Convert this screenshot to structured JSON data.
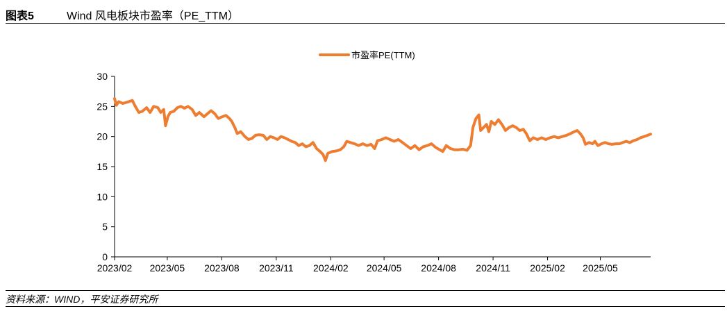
{
  "header": {
    "figure_number": "图表5",
    "figure_title": "Wind 风电板块市盈率（PE_TTM）"
  },
  "footer": {
    "source": "资料来源：WIND，平安证券研究所"
  },
  "colors": {
    "series": "#ED7D31",
    "axis": "#000000"
  },
  "chart_data": {
    "type": "line",
    "title": "",
    "xlabel": "",
    "ylabel": "",
    "ylim": [
      0,
      30
    ],
    "yticks": [
      0,
      5,
      10,
      15,
      20,
      25,
      30
    ],
    "xlim": [
      "2023-02-01",
      "2025-07-25"
    ],
    "xtick_labels": [
      "2023/02",
      "2023/05",
      "2023/08",
      "2023/11",
      "2024/02",
      "2024/05",
      "2024/08",
      "2024/11",
      "2025/02",
      "2025/05"
    ],
    "xtick_dates": [
      "2023-02-01",
      "2023-05-01",
      "2023-08-01",
      "2023-11-01",
      "2024-02-01",
      "2024-05-01",
      "2024-08-01",
      "2024-11-01",
      "2025-02-01",
      "2025-05-01"
    ],
    "grid": false,
    "legend_position": "top-center",
    "series": [
      {
        "name": "市盈率PE(TTM)",
        "points": [
          [
            "2023-02-01",
            26.3
          ],
          [
            "2023-02-04",
            25.2
          ],
          [
            "2023-02-08",
            25.8
          ],
          [
            "2023-02-15",
            25.5
          ],
          [
            "2023-02-25",
            25.8
          ],
          [
            "2023-03-03",
            26.0
          ],
          [
            "2023-03-08",
            25.0
          ],
          [
            "2023-03-14",
            24.0
          ],
          [
            "2023-03-20",
            24.2
          ],
          [
            "2023-03-27",
            24.8
          ],
          [
            "2023-04-02",
            24.0
          ],
          [
            "2023-04-08",
            25.0
          ],
          [
            "2023-04-15",
            24.8
          ],
          [
            "2023-04-20",
            24.0
          ],
          [
            "2023-04-25",
            24.5
          ],
          [
            "2023-04-28",
            21.8
          ],
          [
            "2023-05-02",
            23.3
          ],
          [
            "2023-05-06",
            24.0
          ],
          [
            "2023-05-12",
            24.2
          ],
          [
            "2023-05-18",
            24.8
          ],
          [
            "2023-05-24",
            25.0
          ],
          [
            "2023-05-30",
            24.7
          ],
          [
            "2023-06-05",
            25.0
          ],
          [
            "2023-06-12",
            24.5
          ],
          [
            "2023-06-18",
            23.5
          ],
          [
            "2023-06-24",
            24.0
          ],
          [
            "2023-07-02",
            23.3
          ],
          [
            "2023-07-08",
            23.8
          ],
          [
            "2023-07-14",
            24.3
          ],
          [
            "2023-07-20",
            23.8
          ],
          [
            "2023-07-26",
            23.0
          ],
          [
            "2023-08-02",
            23.3
          ],
          [
            "2023-08-08",
            23.5
          ],
          [
            "2023-08-14",
            23.0
          ],
          [
            "2023-08-18",
            22.5
          ],
          [
            "2023-08-23",
            21.5
          ],
          [
            "2023-08-27",
            20.5
          ],
          [
            "2023-09-02",
            20.8
          ],
          [
            "2023-09-09",
            20.0
          ],
          [
            "2023-09-15",
            19.5
          ],
          [
            "2023-09-21",
            19.7
          ],
          [
            "2023-09-27",
            20.2
          ],
          [
            "2023-10-03",
            20.3
          ],
          [
            "2023-10-10",
            20.2
          ],
          [
            "2023-10-16",
            19.5
          ],
          [
            "2023-10-22",
            20.0
          ],
          [
            "2023-10-28",
            19.8
          ],
          [
            "2023-11-03",
            19.5
          ],
          [
            "2023-11-09",
            20.0
          ],
          [
            "2023-11-15",
            19.8
          ],
          [
            "2023-11-21",
            19.5
          ],
          [
            "2023-11-27",
            19.2
          ],
          [
            "2023-12-03",
            19.0
          ],
          [
            "2023-12-09",
            18.5
          ],
          [
            "2023-12-15",
            18.8
          ],
          [
            "2023-12-21",
            18.3
          ],
          [
            "2023-12-27",
            18.5
          ],
          [
            "2024-01-02",
            19.0
          ],
          [
            "2024-01-08",
            18.0
          ],
          [
            "2024-01-14",
            17.5
          ],
          [
            "2024-01-19",
            17.0
          ],
          [
            "2024-01-23",
            16.0
          ],
          [
            "2024-01-27",
            17.2
          ],
          [
            "2024-02-03",
            17.5
          ],
          [
            "2024-02-10",
            17.6
          ],
          [
            "2024-02-17",
            17.8
          ],
          [
            "2024-02-23",
            18.3
          ],
          [
            "2024-02-28",
            19.2
          ],
          [
            "2024-03-05",
            19.0
          ],
          [
            "2024-03-12",
            18.8
          ],
          [
            "2024-03-19",
            18.5
          ],
          [
            "2024-03-26",
            18.8
          ],
          [
            "2024-04-02",
            18.5
          ],
          [
            "2024-04-09",
            18.7
          ],
          [
            "2024-04-15",
            18.0
          ],
          [
            "2024-04-20",
            19.3
          ],
          [
            "2024-04-27",
            19.5
          ],
          [
            "2024-05-04",
            19.8
          ],
          [
            "2024-05-11",
            19.5
          ],
          [
            "2024-05-18",
            19.2
          ],
          [
            "2024-05-25",
            19.5
          ],
          [
            "2024-06-01",
            19.0
          ],
          [
            "2024-06-08",
            18.5
          ],
          [
            "2024-06-15",
            18.0
          ],
          [
            "2024-06-22",
            18.5
          ],
          [
            "2024-06-29",
            17.8
          ],
          [
            "2024-07-06",
            18.3
          ],
          [
            "2024-07-13",
            18.5
          ],
          [
            "2024-07-20",
            18.8
          ],
          [
            "2024-07-27",
            18.2
          ],
          [
            "2024-08-03",
            17.8
          ],
          [
            "2024-08-08",
            17.5
          ],
          [
            "2024-08-14",
            18.5
          ],
          [
            "2024-08-21",
            18.0
          ],
          [
            "2024-08-28",
            17.8
          ],
          [
            "2024-09-04",
            17.8
          ],
          [
            "2024-09-11",
            17.9
          ],
          [
            "2024-09-18",
            17.7
          ],
          [
            "2024-09-24",
            18.5
          ],
          [
            "2024-09-28",
            21.5
          ],
          [
            "2024-10-03",
            23.0
          ],
          [
            "2024-10-08",
            23.6
          ],
          [
            "2024-10-11",
            21.0
          ],
          [
            "2024-10-16",
            21.5
          ],
          [
            "2024-10-21",
            22.0
          ],
          [
            "2024-10-25",
            20.8
          ],
          [
            "2024-10-29",
            22.5
          ],
          [
            "2024-11-04",
            22.0
          ],
          [
            "2024-11-10",
            22.8
          ],
          [
            "2024-11-16",
            22.0
          ],
          [
            "2024-11-22",
            21.0
          ],
          [
            "2024-11-28",
            21.5
          ],
          [
            "2024-12-04",
            21.8
          ],
          [
            "2024-12-10",
            21.5
          ],
          [
            "2024-12-16",
            21.0
          ],
          [
            "2024-12-22",
            21.2
          ],
          [
            "2024-12-27",
            20.5
          ],
          [
            "2025-01-02",
            19.3
          ],
          [
            "2025-01-08",
            19.8
          ],
          [
            "2025-01-15",
            19.5
          ],
          [
            "2025-01-22",
            19.8
          ],
          [
            "2025-01-29",
            19.5
          ],
          [
            "2025-02-05",
            19.8
          ],
          [
            "2025-02-12",
            20.0
          ],
          [
            "2025-02-19",
            19.8
          ],
          [
            "2025-02-26",
            20.0
          ],
          [
            "2025-03-05",
            20.2
          ],
          [
            "2025-03-12",
            20.5
          ],
          [
            "2025-03-18",
            20.8
          ],
          [
            "2025-03-23",
            21.0
          ],
          [
            "2025-03-28",
            20.5
          ],
          [
            "2025-04-02",
            19.8
          ],
          [
            "2025-04-06",
            18.7
          ],
          [
            "2025-04-12",
            19.0
          ],
          [
            "2025-04-18",
            18.8
          ],
          [
            "2025-04-22",
            19.2
          ],
          [
            "2025-04-27",
            18.5
          ],
          [
            "2025-05-03",
            18.8
          ],
          [
            "2025-05-09",
            19.0
          ],
          [
            "2025-05-15",
            18.8
          ],
          [
            "2025-05-21",
            18.7
          ],
          [
            "2025-05-27",
            18.8
          ],
          [
            "2025-06-02",
            18.8
          ],
          [
            "2025-06-08",
            19.0
          ],
          [
            "2025-06-14",
            19.2
          ],
          [
            "2025-06-20",
            19.0
          ],
          [
            "2025-06-26",
            19.3
          ],
          [
            "2025-07-02",
            19.5
          ],
          [
            "2025-07-08",
            19.8
          ],
          [
            "2025-07-14",
            20.0
          ],
          [
            "2025-07-20",
            20.2
          ],
          [
            "2025-07-25",
            20.4
          ]
        ]
      }
    ]
  }
}
